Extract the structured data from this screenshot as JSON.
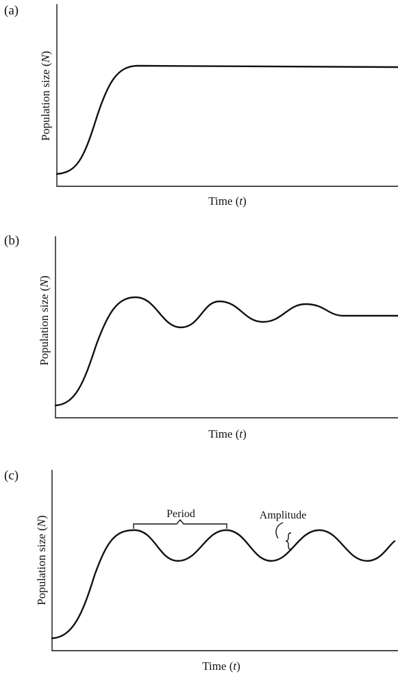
{
  "chart_data": [
    {
      "type": "line",
      "panel_label": "(a)",
      "xlabel_main": "Time",
      "xlabel_var": "t",
      "ylabel_main": "Population size",
      "ylabel_var": "N",
      "grid": false,
      "series": [
        {
          "x": [
            0,
            5,
            10,
            15,
            20,
            25,
            30,
            35,
            40,
            45,
            50,
            55,
            60,
            65,
            70,
            75,
            80,
            85,
            90,
            95,
            100
          ],
          "y": [
            0.03,
            0.13,
            0.5,
            0.86,
            0.96,
            0.96,
            0.96,
            0.96,
            0.96,
            0.96,
            0.96,
            0.96,
            0.96,
            0.96,
            0.96,
            0.96,
            0.96,
            0.96,
            0.96,
            0.96,
            0.96
          ]
        }
      ]
    },
    {
      "type": "line",
      "panel_label": "(b)",
      "xlabel_main": "Time",
      "xlabel_var": "t",
      "ylabel_main": "Population size",
      "ylabel_var": "N",
      "grid": false,
      "series": [
        {
          "x": [
            0,
            5,
            10,
            15,
            20,
            25,
            30,
            35,
            40,
            45,
            50,
            55,
            60,
            65,
            70,
            75,
            80,
            85,
            90,
            95,
            100
          ],
          "y": [
            0.03,
            0.13,
            0.5,
            0.86,
            0.96,
            0.9,
            0.68,
            0.82,
            0.93,
            0.86,
            0.72,
            0.8,
            0.89,
            0.82,
            0.8,
            0.8,
            0.8,
            0.8,
            0.8,
            0.8,
            0.8
          ]
        }
      ]
    },
    {
      "type": "line",
      "panel_label": "(c)",
      "xlabel_main": "Time",
      "xlabel_var": "t",
      "ylabel_main": "Population size",
      "ylabel_var": "N",
      "grid": false,
      "annotations": {
        "period": "Period",
        "amplitude": "Amplitude"
      },
      "series": [
        {
          "x": [
            0,
            5,
            10,
            15,
            20,
            25,
            30,
            35,
            40,
            45,
            50,
            55,
            60,
            65,
            70,
            75,
            80,
            85,
            90,
            95,
            100
          ],
          "y": [
            0.03,
            0.13,
            0.5,
            0.86,
            0.96,
            0.85,
            0.62,
            0.85,
            0.96,
            0.85,
            0.62,
            0.85,
            0.96,
            0.85,
            0.62,
            0.85,
            0.96,
            0.85,
            0.62,
            0.7,
            0.85
          ]
        }
      ]
    }
  ]
}
